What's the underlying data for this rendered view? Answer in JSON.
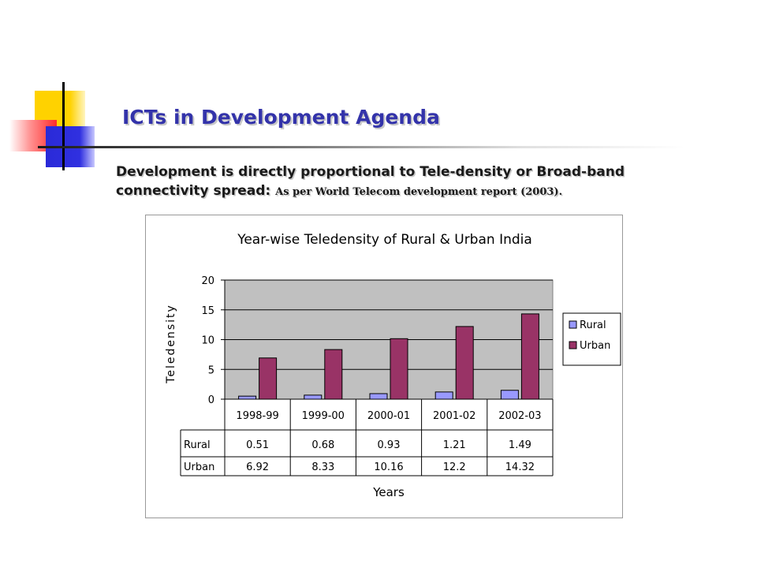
{
  "slide": {
    "title": "ICTs in Development Agenda",
    "subtitle_main": "Development is directly proportional to Tele-density or Broad-band connectivity spread:",
    "subtitle_note": "As per World Telecom development report (2003)."
  },
  "chart_data": {
    "type": "bar",
    "title": "Year-wise Teledensity of Rural & Urban India",
    "xlabel": "Years",
    "ylabel": "Teledensity",
    "categories": [
      "1998-99",
      "1999-00",
      "2000-01",
      "2001-02",
      "2002-03"
    ],
    "series": [
      {
        "name": "Rural",
        "values": [
          0.51,
          0.68,
          0.93,
          1.21,
          1.49
        ],
        "labels": [
          "0.51",
          "0.68",
          "0.93",
          "1.21",
          "1.49"
        ],
        "color": "#9999ff"
      },
      {
        "name": "Urban",
        "values": [
          6.92,
          8.33,
          10.16,
          12.2,
          14.32
        ],
        "labels": [
          "6.92",
          "8.33",
          "10.16",
          "12.2",
          "14.32"
        ],
        "color": "#993366"
      }
    ],
    "ylim": [
      0,
      20
    ],
    "yticks": [
      "0",
      "5",
      "10",
      "15",
      "20"
    ],
    "grid": true,
    "plot_background": "#c0c0c0",
    "legend": "right",
    "data_table": true
  }
}
